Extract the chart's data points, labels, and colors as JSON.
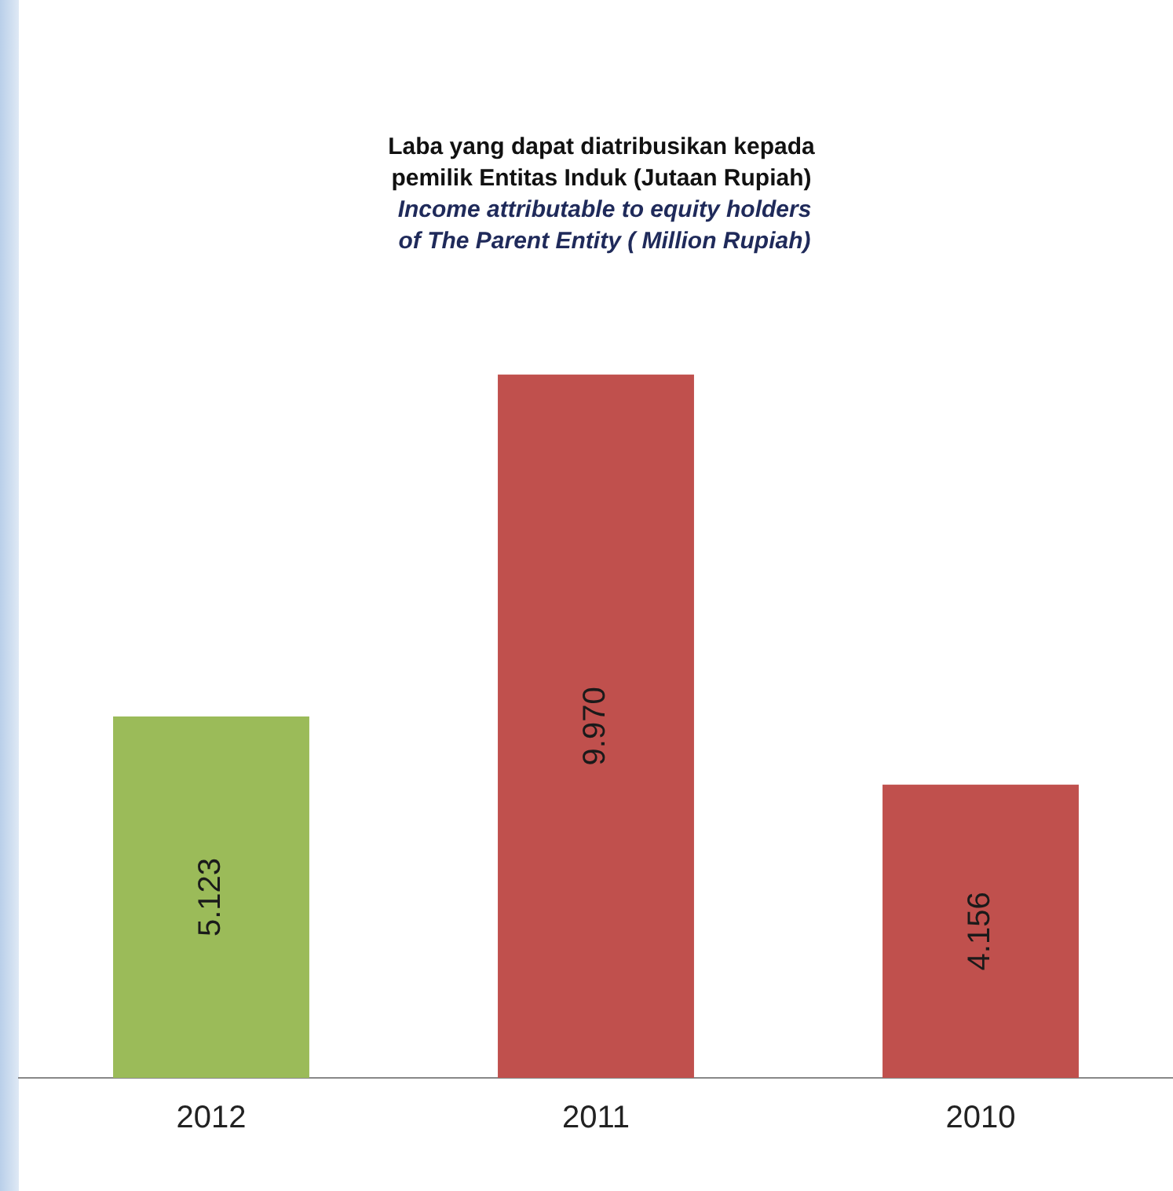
{
  "chart_data": {
    "type": "bar",
    "title": "Laba yang dapat diatribusikan kepada pemilik Entitas Induk (Jutaan Rupiah)",
    "subtitle": "Income  attributable to equity holders of The Parent Entity ( Million Rupiah)",
    "categories": [
      "2012",
      "2011",
      "2010"
    ],
    "values": [
      5123,
      9970,
      4156
    ],
    "colors": [
      "#9bbb59",
      "#c0504d",
      "#c0504d"
    ],
    "value_labels": [
      "5.123",
      "9.970",
      "4.156"
    ],
    "tick_labels": "x",
    "grid": false,
    "legend": false
  }
}
